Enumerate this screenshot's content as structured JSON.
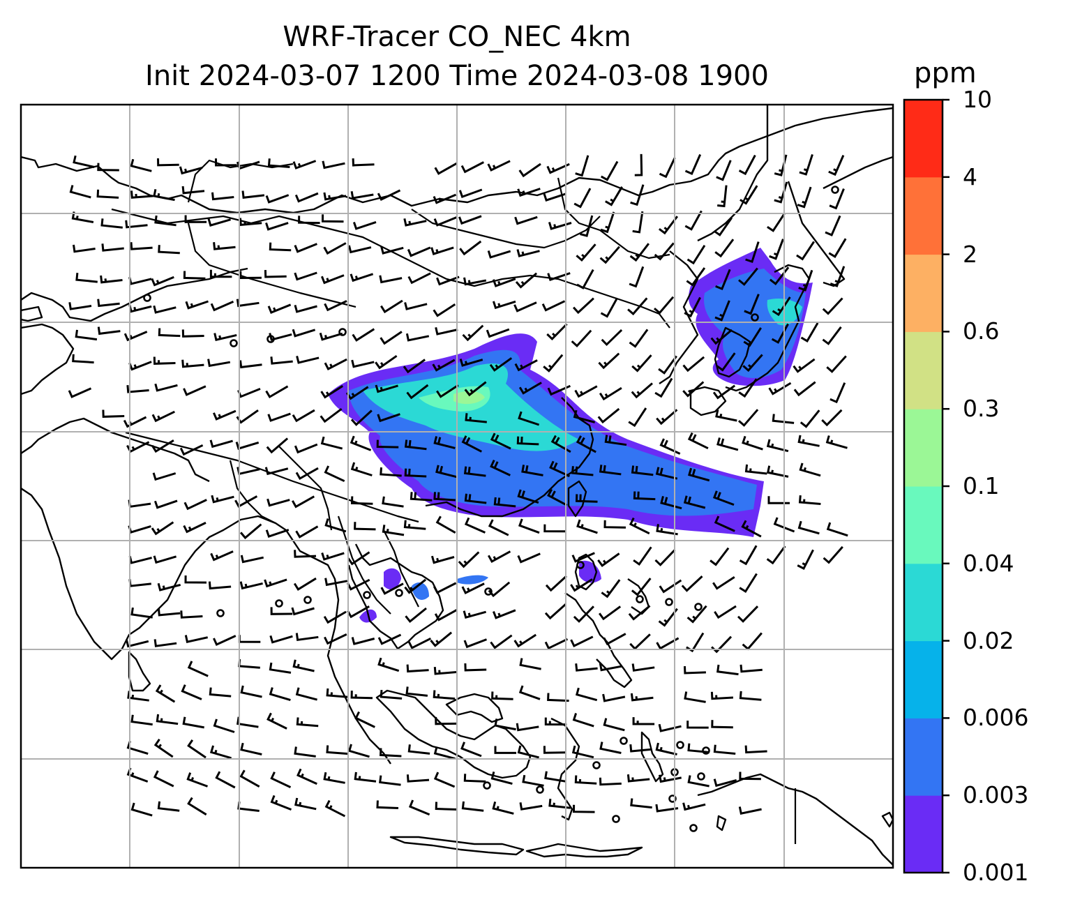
{
  "title": {
    "line1": "WRF-Tracer CO_NEC 4km",
    "line2": "Init 2024-03-07 1200 Time 2024-03-08 1900"
  },
  "colorbar": {
    "unit": "ppm",
    "ticks": [
      "0.001",
      "0.003",
      "0.006",
      "0.02",
      "0.04",
      "0.1",
      "0.3",
      "0.6",
      "2",
      "4",
      "10"
    ],
    "colors": [
      "#6a2cf5",
      "#3375f3",
      "#06b2ea",
      "#2bd9d5",
      "#69f9bd",
      "#9bf796",
      "#d1e185",
      "#fdb063",
      "#ff7138",
      "#ff2b17"
    ]
  },
  "map": {
    "gridlines": true,
    "features": [
      "coastlines",
      "country-borders",
      "wind-barbs",
      "tracer-plume"
    ]
  }
}
